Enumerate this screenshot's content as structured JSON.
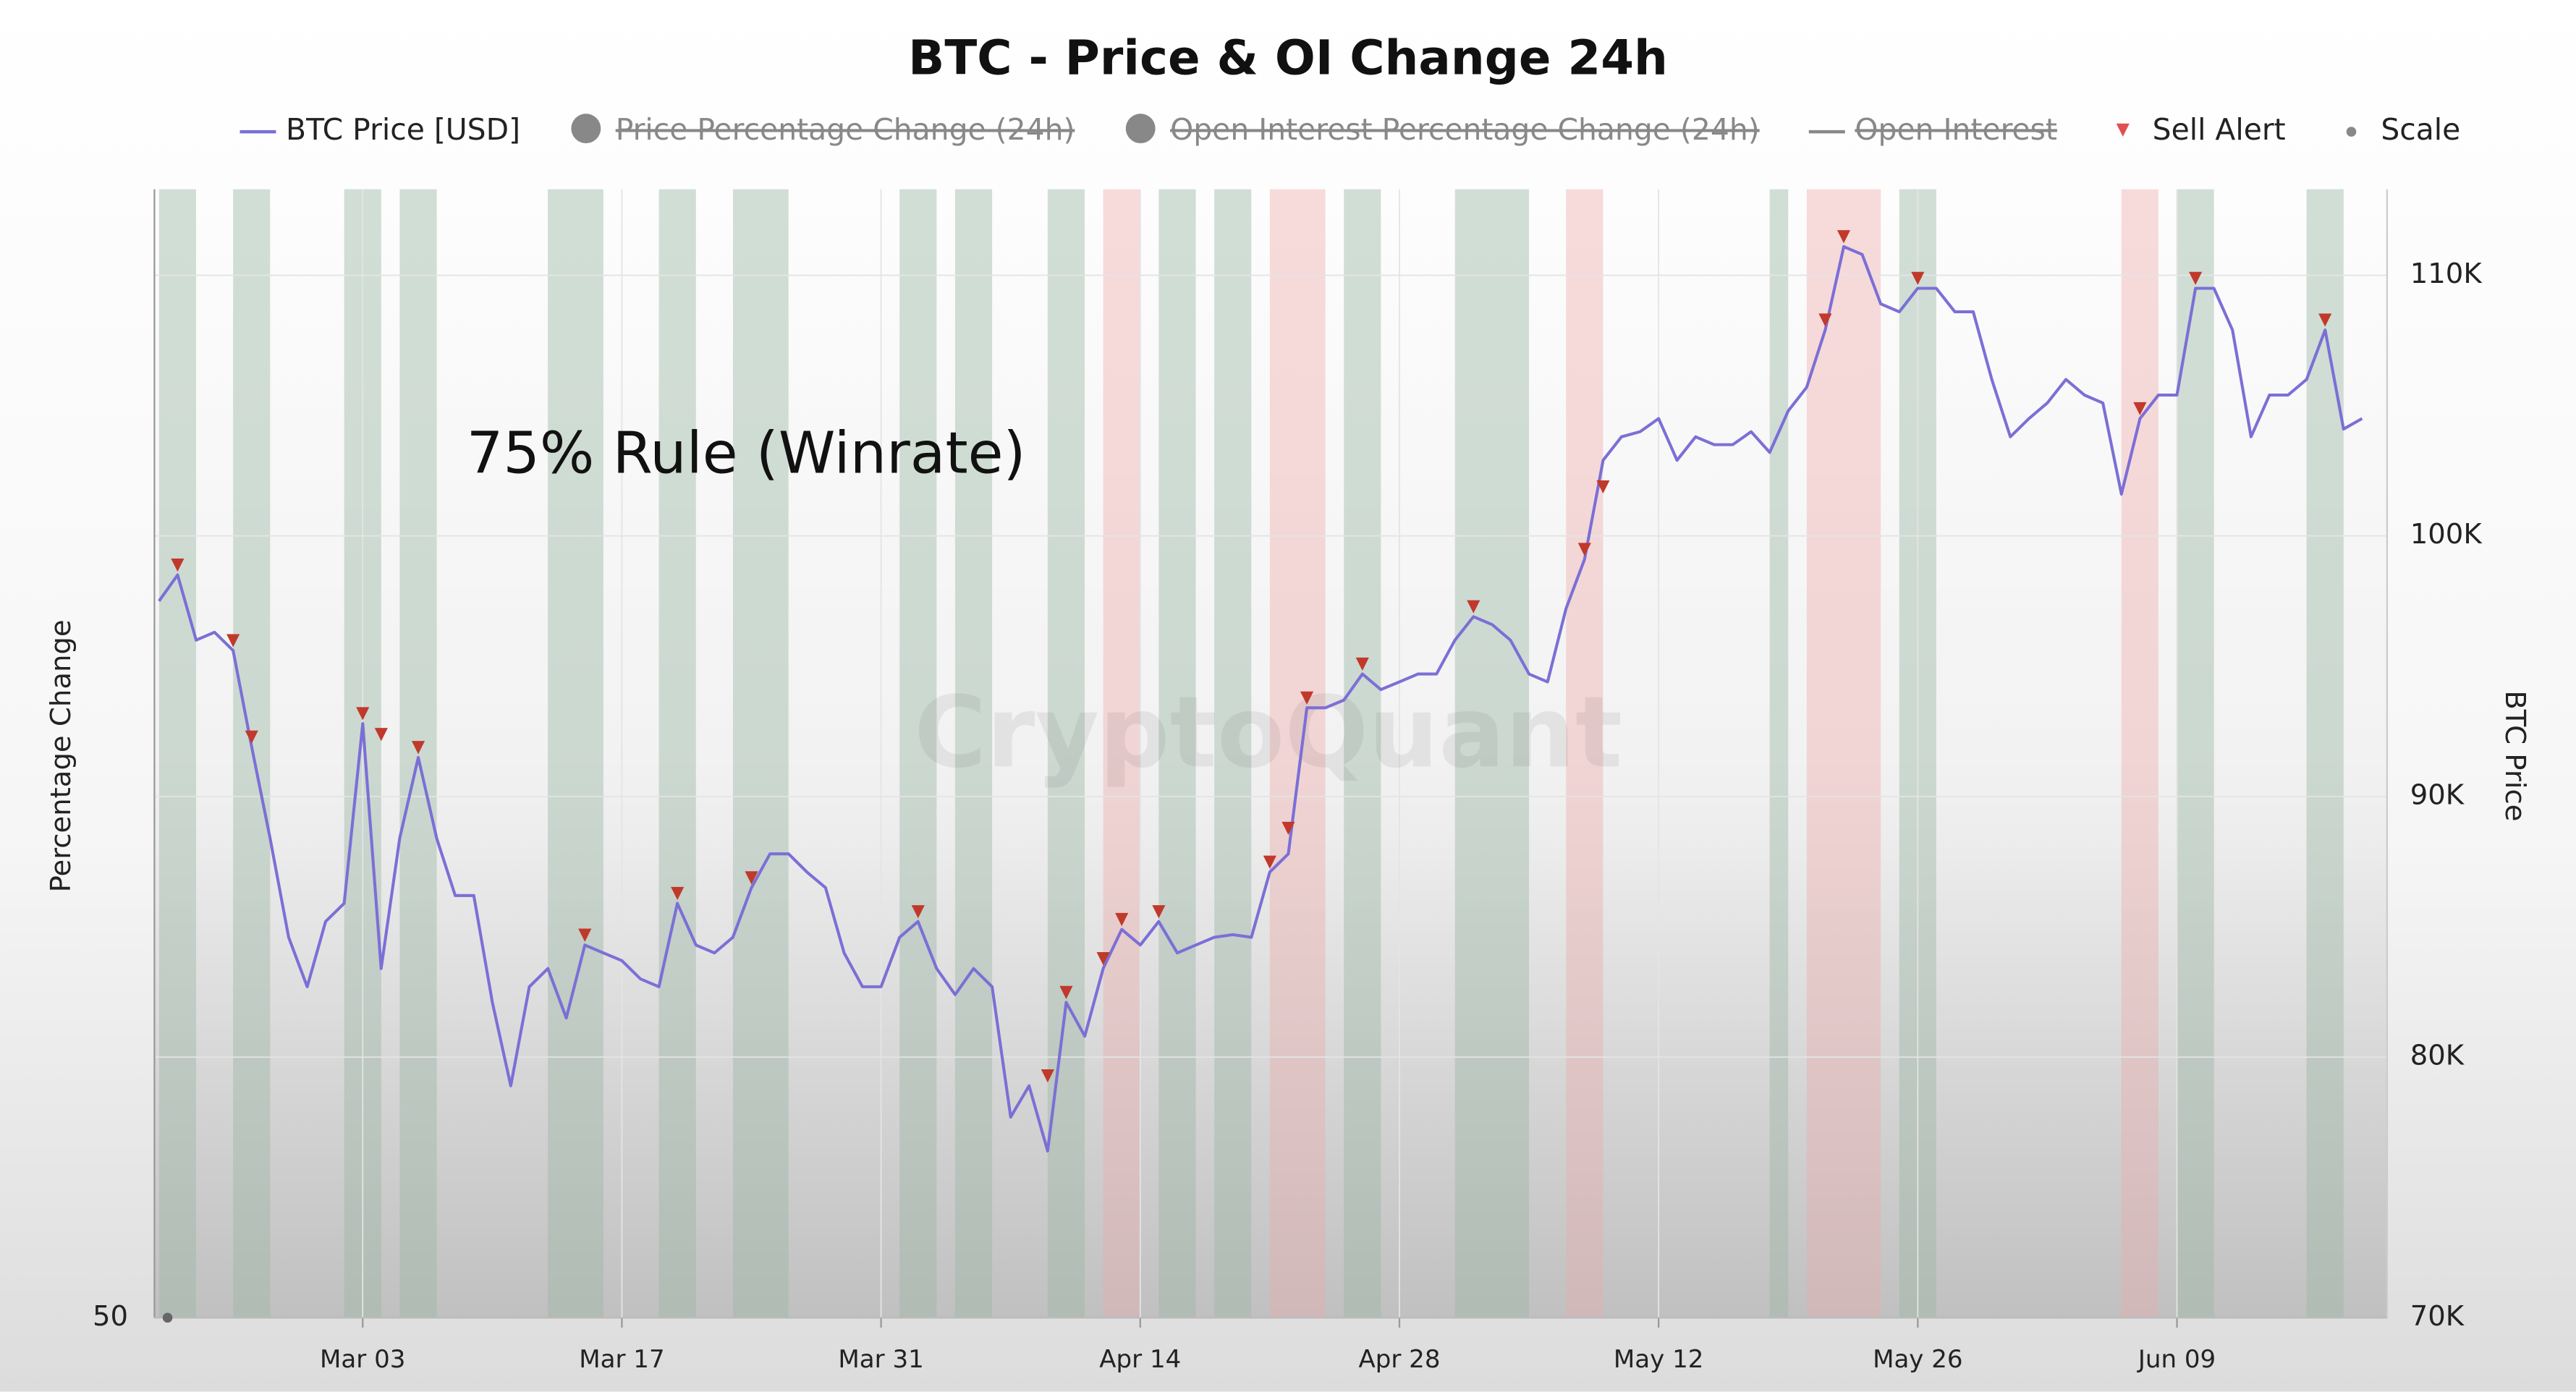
{
  "chart_data": {
    "type": "line",
    "title": "BTC - Price & OI Change 24h",
    "annotation": "75% Rule (Winrate)",
    "watermark": "CryptoQuant",
    "ylabel": "Percentage Change",
    "y2label": "BTC Price",
    "yticks": [
      50
    ],
    "y2lim": [
      70000,
      113300
    ],
    "y2ticks": [
      {
        "value": 70000,
        "label": "70K"
      },
      {
        "value": 80000,
        "label": "80K"
      },
      {
        "value": 90000,
        "label": "90K"
      },
      {
        "value": 100000,
        "label": "100K"
      },
      {
        "value": 110000,
        "label": "110K"
      }
    ],
    "x": [
      "Feb 20",
      "Feb 21",
      "Feb 22",
      "Feb 23",
      "Feb 24",
      "Feb 25",
      "Feb 26",
      "Feb 27",
      "Feb 28",
      "Mar 01",
      "Mar 02",
      "Mar 03",
      "Mar 04",
      "Mar 05",
      "Mar 06",
      "Mar 07",
      "Mar 08",
      "Mar 09",
      "Mar 10",
      "Mar 11",
      "Mar 12",
      "Mar 13",
      "Mar 14",
      "Mar 15",
      "Mar 16",
      "Mar 17",
      "Mar 18",
      "Mar 19",
      "Mar 20",
      "Mar 21",
      "Mar 22",
      "Mar 23",
      "Mar 24",
      "Mar 25",
      "Mar 26",
      "Mar 27",
      "Mar 28",
      "Mar 29",
      "Mar 30",
      "Mar 31",
      "Apr 01",
      "Apr 02",
      "Apr 03",
      "Apr 04",
      "Apr 05",
      "Apr 06",
      "Apr 07",
      "Apr 08",
      "Apr 09",
      "Apr 10",
      "Apr 11",
      "Apr 12",
      "Apr 13",
      "Apr 14",
      "Apr 15",
      "Apr 16",
      "Apr 17",
      "Apr 18",
      "Apr 19",
      "Apr 20",
      "Apr 21",
      "Apr 22",
      "Apr 23",
      "Apr 24",
      "Apr 25",
      "Apr 26",
      "Apr 27",
      "Apr 28",
      "Apr 29",
      "Apr 30",
      "May 01",
      "May 02",
      "May 03",
      "May 04",
      "May 05",
      "May 06",
      "May 07",
      "May 08",
      "May 09",
      "May 10",
      "May 11",
      "May 12",
      "May 13",
      "May 14",
      "May 15",
      "May 16",
      "May 17",
      "May 18",
      "May 19",
      "May 20",
      "May 21",
      "May 22",
      "May 23",
      "May 24",
      "May 25",
      "May 26",
      "May 27",
      "May 28",
      "May 29",
      "May 30",
      "May 31",
      "Jun 01",
      "Jun 02",
      "Jun 03",
      "Jun 04",
      "Jun 05",
      "Jun 06",
      "Jun 07",
      "Jun 08",
      "Jun 09",
      "Jun 10",
      "Jun 11",
      "Jun 12",
      "Jun 13",
      "Jun 14",
      "Jun 15",
      "Jun 16",
      "Jun 17",
      "Jun 18",
      "Jun 19"
    ],
    "xticks": [
      "Mar 03",
      "Mar 17",
      "Mar 31",
      "Apr 14",
      "Apr 28",
      "May 12",
      "May 26",
      "Jun 09"
    ],
    "series": [
      {
        "name": "BTC Price [USD]",
        "color": "#7b6fd6",
        "axis": "y2",
        "values": [
          97500,
          98500,
          96000,
          96300,
          95600,
          91900,
          88400,
          84600,
          82700,
          85200,
          85900,
          92800,
          83400,
          88400,
          91500,
          88400,
          86200,
          86200,
          82100,
          78900,
          82700,
          83400,
          81500,
          84300,
          84000,
          83700,
          83000,
          82700,
          85900,
          84300,
          84000,
          84600,
          86500,
          87800,
          87800,
          87100,
          86500,
          84000,
          82700,
          82700,
          84600,
          85200,
          83400,
          82400,
          83400,
          82700,
          77700,
          78900,
          76400,
          82100,
          80800,
          83400,
          84900,
          84300,
          85200,
          84000,
          84300,
          84600,
          84700,
          84600,
          87100,
          87800,
          93400,
          93400,
          93700,
          94700,
          94100,
          94400,
          94700,
          94700,
          96000,
          96900,
          96600,
          96000,
          94700,
          94400,
          97200,
          99100,
          102900,
          103800,
          104000,
          104500,
          102900,
          103800,
          103500,
          103500,
          104000,
          103200,
          104800,
          105700,
          107900,
          111100,
          110800,
          108900,
          108600,
          109500,
          109500,
          108600,
          108600,
          106000,
          103800,
          104500,
          105100,
          106000,
          105400,
          105100,
          101600,
          104500,
          105400,
          105400,
          109500,
          109500,
          107900,
          103800,
          105400,
          105400,
          106000,
          107900,
          104100,
          104500
        ]
      },
      {
        "name": "Sell Alert",
        "color": "#c0392b",
        "axis": "y2",
        "x": [
          "Feb 21",
          "Feb 24",
          "Feb 25",
          "Mar 03",
          "Mar 04",
          "Mar 06",
          "Mar 15",
          "Mar 20",
          "Mar 24",
          "Apr 02",
          "Apr 09",
          "Apr 10",
          "Apr 12",
          "Apr 13",
          "Apr 15",
          "Apr 21",
          "Apr 22",
          "Apr 23",
          "Apr 26",
          "May 02",
          "May 08",
          "May 09",
          "May 21",
          "May 22",
          "May 26",
          "Jun 07",
          "Jun 10",
          "Jun 17"
        ],
        "values": [
          98500,
          95600,
          91900,
          92800,
          92000,
          91500,
          84300,
          85900,
          86500,
          85200,
          78900,
          82100,
          83400,
          84900,
          85200,
          87100,
          88400,
          93400,
          94700,
          96900,
          99100,
          101500,
          107900,
          111100,
          109500,
          104500,
          109500,
          107900
        ]
      }
    ],
    "legend": [
      {
        "name": "BTC Price [USD]",
        "symbol": "line",
        "color": "#7b6fd6",
        "hidden": false
      },
      {
        "name": "Price Percentage Change (24h)",
        "symbol": "circle",
        "color": "#777777",
        "hidden": true
      },
      {
        "name": "Open Interest Percentage Change (24h)",
        "symbol": "circle",
        "color": "#777777",
        "hidden": true
      },
      {
        "name": "Open Interest",
        "symbol": "line",
        "color": "#777777",
        "hidden": true
      },
      {
        "name": "Sell Alert",
        "symbol": "triangle",
        "color": "#e05050",
        "hidden": false
      },
      {
        "name": "Scale",
        "symbol": "dot",
        "color": "#888888",
        "hidden": false
      }
    ],
    "bands": [
      {
        "start": "Feb 20",
        "end": "Feb 22",
        "color": "#c9d8cf"
      },
      {
        "start": "Feb 24",
        "end": "Feb 26",
        "color": "#c9d8cf"
      },
      {
        "start": "Mar 02",
        "end": "Mar 04",
        "color": "#c9d8cf"
      },
      {
        "start": "Mar 05",
        "end": "Mar 07",
        "color": "#c9d8cf"
      },
      {
        "start": "Mar 13",
        "end": "Mar 16",
        "color": "#c9d8cf"
      },
      {
        "start": "Mar 19",
        "end": "Mar 21",
        "color": "#c9d8cf"
      },
      {
        "start": "Mar 23",
        "end": "Mar 26",
        "color": "#c9d8cf"
      },
      {
        "start": "Apr 01",
        "end": "Apr 03",
        "color": "#c9d8cf"
      },
      {
        "start": "Apr 04",
        "end": "Apr 06",
        "color": "#c9d8cf"
      },
      {
        "start": "Apr 09",
        "end": "Apr 11",
        "color": "#c9d8cf"
      },
      {
        "start": "Apr 12",
        "end": "Apr 14",
        "color": "#f6d3d3"
      },
      {
        "start": "Apr 15",
        "end": "Apr 17",
        "color": "#c9d8cf"
      },
      {
        "start": "Apr 18",
        "end": "Apr 20",
        "color": "#c9d8cf"
      },
      {
        "start": "Apr 21",
        "end": "Apr 24",
        "color": "#f6d3d3"
      },
      {
        "start": "Apr 25",
        "end": "Apr 27",
        "color": "#c9d8cf"
      },
      {
        "start": "May 01",
        "end": "May 05",
        "color": "#c9d8cf"
      },
      {
        "start": "May 07",
        "end": "May 09",
        "color": "#f6d3d3"
      },
      {
        "start": "May 18",
        "end": "May 19",
        "color": "#c9d8cf"
      },
      {
        "start": "May 20",
        "end": "May 24",
        "color": "#f6d3d3"
      },
      {
        "start": "May 25",
        "end": "May 27",
        "color": "#c9d8cf"
      },
      {
        "start": "Jun 06",
        "end": "Jun 08",
        "color": "#f6d3d3"
      },
      {
        "start": "Jun 09",
        "end": "Jun 11",
        "color": "#c9d8cf"
      },
      {
        "start": "Jun 16",
        "end": "Jun 18",
        "color": "#c9d8cf"
      }
    ]
  }
}
